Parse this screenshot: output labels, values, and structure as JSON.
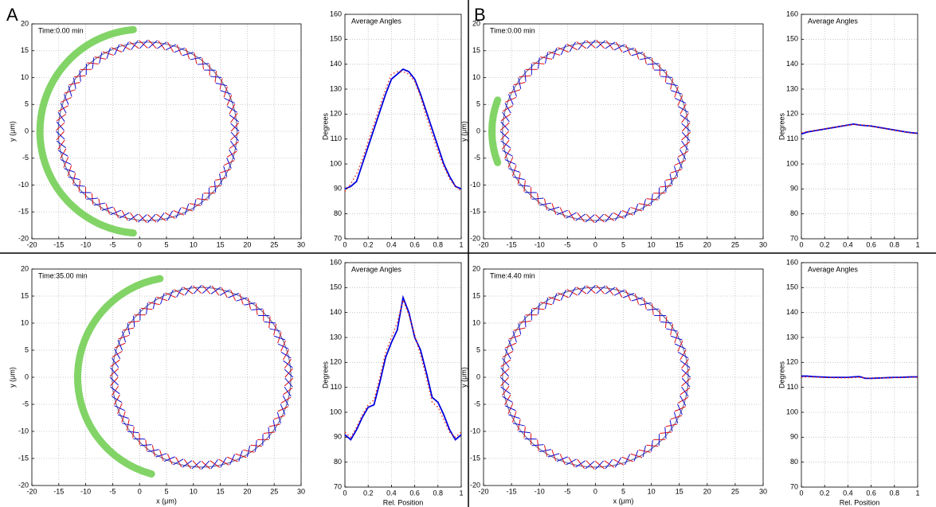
{
  "panel_labels": [
    "A",
    "B"
  ],
  "chart_data": [
    {
      "type": "circle",
      "title": "Time:0.00 min",
      "ylabel": "y (μm)",
      "xlim": [
        -20,
        30
      ],
      "ylim": [
        -20,
        20
      ],
      "xticks": [
        -20,
        -15,
        -10,
        -5,
        0,
        5,
        10,
        15,
        20,
        25,
        30
      ],
      "yticks": [
        -20,
        -15,
        -10,
        -5,
        0,
        5,
        10,
        15,
        20
      ],
      "grid": true,
      "circle": {
        "cx": 1.5,
        "cy": 0,
        "r": 16.6,
        "color": "#7070a0"
      }
    },
    {
      "type": "line",
      "title": "Average Angles",
      "ylabel": "Degrees",
      "xlim": [
        0,
        1
      ],
      "ylim": [
        70,
        160
      ],
      "xticks": [
        0,
        0.2,
        0.4,
        0.6,
        0.8,
        1
      ],
      "yticks": [
        70,
        80,
        90,
        100,
        110,
        120,
        130,
        140,
        150,
        160
      ],
      "grid": true,
      "x": [
        0,
        0.05,
        0.1,
        0.15,
        0.2,
        0.25,
        0.3,
        0.35,
        0.4,
        0.45,
        0.5,
        0.55,
        0.6,
        0.65,
        0.7,
        0.75,
        0.8,
        0.85,
        0.9,
        0.95,
        1
      ],
      "series": [
        {
          "color": "#0000dd",
          "style": "solid",
          "values": [
            90,
            91,
            93,
            100,
            107,
            114,
            121,
            128,
            134,
            136,
            138,
            137,
            134,
            128,
            121,
            114,
            107,
            100,
            95,
            91,
            90
          ]
        },
        {
          "color": "#ee2200",
          "style": "dotted",
          "values": [
            89,
            92,
            96,
            102,
            109,
            116,
            123,
            130,
            136,
            137,
            137,
            136,
            133,
            127,
            119,
            112,
            105,
            99,
            94,
            91,
            89
          ]
        }
      ]
    },
    {
      "type": "circle",
      "title": "Time:0.00 min",
      "ylabel": "y (μm)",
      "xlim": [
        -20,
        30
      ],
      "ylim": [
        -20,
        20
      ],
      "xticks": [
        -20,
        -15,
        -10,
        -5,
        0,
        5,
        10,
        15,
        20,
        25,
        30
      ],
      "yticks": [
        -20,
        -15,
        -10,
        -5,
        0,
        5,
        10,
        15,
        20
      ],
      "grid": true,
      "circle": {
        "cx": 0,
        "cy": 0,
        "r": 16.6,
        "color": "#7070a0"
      }
    },
    {
      "type": "line",
      "title": "Average Angles",
      "ylabel": "Degrees",
      "xlim": [
        0,
        1
      ],
      "ylim": [
        70,
        160
      ],
      "xticks": [
        0,
        0.2,
        0.4,
        0.6,
        0.8,
        1
      ],
      "yticks": [
        70,
        80,
        90,
        100,
        110,
        120,
        130,
        140,
        150,
        160
      ],
      "grid": true,
      "x": [
        0,
        0.05,
        0.1,
        0.15,
        0.2,
        0.25,
        0.3,
        0.35,
        0.4,
        0.45,
        0.5,
        0.55,
        0.6,
        0.65,
        0.7,
        0.75,
        0.8,
        0.85,
        0.9,
        0.95,
        1
      ],
      "series": [
        {
          "color": "#0000dd",
          "style": "solid",
          "values": [
            112,
            112.8,
            113.2,
            113.6,
            114,
            114.4,
            114.8,
            115.2,
            115.6,
            116,
            115.6,
            115.4,
            115.2,
            114.8,
            114.4,
            114,
            113.6,
            113.2,
            112.8,
            112.5,
            112.3
          ]
        },
        {
          "color": "#ee2200",
          "style": "dotted",
          "values": [
            112.5,
            113,
            113.3,
            113.7,
            114.1,
            114.5,
            114.9,
            115.3,
            115.5,
            115.8,
            115.7,
            115.5,
            115.1,
            114.7,
            114.3,
            113.9,
            113.5,
            113.1,
            112.7,
            112.4,
            112.2
          ]
        }
      ]
    },
    {
      "type": "circle",
      "title": "Time:35.00 min",
      "xlabel": "x (μm)",
      "ylabel": "y (μm)",
      "xlim": [
        -20,
        30
      ],
      "ylim": [
        -20,
        20
      ],
      "xticks": [
        -20,
        -15,
        -10,
        -5,
        0,
        5,
        10,
        15,
        20,
        25,
        30
      ],
      "yticks": [
        -20,
        -15,
        -10,
        -5,
        0,
        5,
        10,
        15,
        20
      ],
      "grid": true,
      "circle": {
        "cx": 11.5,
        "cy": 0,
        "r": 16.6,
        "color": "#7070a0"
      }
    },
    {
      "type": "line",
      "title": "Average Angles",
      "xlabel": "Rel. Position",
      "ylabel": "Degrees",
      "xlim": [
        0,
        1
      ],
      "ylim": [
        70,
        160
      ],
      "xticks": [
        0,
        0.2,
        0.4,
        0.6,
        0.8,
        1
      ],
      "yticks": [
        70,
        80,
        90,
        100,
        110,
        120,
        130,
        140,
        150,
        160
      ],
      "grid": true,
      "x": [
        0,
        0.05,
        0.1,
        0.15,
        0.2,
        0.25,
        0.3,
        0.35,
        0.4,
        0.45,
        0.5,
        0.55,
        0.6,
        0.65,
        0.7,
        0.75,
        0.8,
        0.85,
        0.9,
        0.95,
        1
      ],
      "series": [
        {
          "color": "#0000dd",
          "style": "solid",
          "values": [
            91,
            89,
            93,
            98,
            102,
            103,
            112,
            122,
            128,
            133,
            146,
            140,
            130,
            125,
            116,
            106,
            104,
            99,
            93,
            89,
            91
          ]
        },
        {
          "color": "#ee2200",
          "style": "dotted",
          "values": [
            92,
            90,
            94,
            99,
            103,
            105,
            114,
            124,
            130,
            136,
            145,
            139,
            131,
            123,
            114,
            104,
            102,
            97,
            92,
            90,
            92
          ]
        }
      ]
    },
    {
      "type": "circle",
      "title": "Time:4.40 min",
      "xlabel": "x (μm)",
      "ylabel": "y (μm)",
      "xlim": [
        -20,
        30
      ],
      "ylim": [
        -20,
        20
      ],
      "xticks": [
        -20,
        -15,
        -10,
        -5,
        0,
        5,
        10,
        15,
        20,
        25,
        30
      ],
      "yticks": [
        -20,
        -15,
        -10,
        -5,
        0,
        5,
        10,
        15,
        20
      ],
      "grid": true,
      "circle": {
        "cx": 0,
        "cy": 0,
        "r": 16.6,
        "color": "#7070a0"
      }
    },
    {
      "type": "line",
      "title": "Average Angles",
      "xlabel": "Rel. Position",
      "ylabel": "Degrees",
      "xlim": [
        0,
        1
      ],
      "ylim": [
        70,
        160
      ],
      "xticks": [
        0,
        0.2,
        0.4,
        0.6,
        0.8,
        1
      ],
      "yticks": [
        70,
        80,
        90,
        100,
        110,
        120,
        130,
        140,
        150,
        160
      ],
      "grid": true,
      "x": [
        0,
        0.05,
        0.1,
        0.15,
        0.2,
        0.25,
        0.3,
        0.35,
        0.4,
        0.45,
        0.5,
        0.55,
        0.6,
        0.65,
        0.7,
        0.75,
        0.8,
        0.85,
        0.9,
        0.95,
        1
      ],
      "series": [
        {
          "color": "#0000dd",
          "style": "solid",
          "values": [
            114.5,
            114.5,
            114.3,
            114.2,
            114.1,
            114,
            114,
            114,
            114,
            114.2,
            114.3,
            113.6,
            113.6,
            113.7,
            113.8,
            113.9,
            114,
            114,
            114.1,
            114.2,
            114.2
          ]
        },
        {
          "color": "#ee2200",
          "style": "dotted",
          "values": [
            114,
            114.2,
            114.1,
            114,
            113.9,
            113.9,
            113.8,
            113.8,
            113.8,
            113.9,
            114,
            113.8,
            113.7,
            113.7,
            113.8,
            113.8,
            113.9,
            113.9,
            114,
            114,
            114
          ]
        }
      ]
    }
  ]
}
